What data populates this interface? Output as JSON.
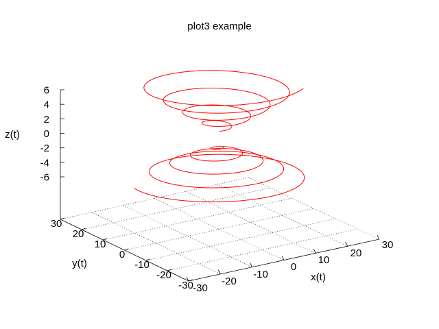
{
  "chart_data": {
    "type": "line",
    "title": "plot3 example",
    "xlabel": "x(t)",
    "ylabel": "y(t)",
    "zlabel": "z(t)",
    "xlim": [
      -30,
      30
    ],
    "ylim": [
      -30,
      30
    ],
    "zlim": [
      -7,
      7
    ],
    "xticks": [
      "-30",
      "-20",
      "-10",
      "0",
      "10",
      "20",
      "30"
    ],
    "yticks": [
      "-30",
      "-20",
      "-10",
      "0",
      "10",
      "20",
      "30"
    ],
    "zticks": [
      "-6",
      "-4",
      "-2",
      "0",
      "2",
      "4",
      "6"
    ],
    "grid": true,
    "view": "3d-perspective",
    "series": [
      {
        "color": "#ff0000",
        "parametric": "x = t*cos(t), y = t*sin(t), z = asinh-like spiral (upper half t>0, lower half t<0)",
        "t_range": [
          -28,
          28
        ],
        "z_range": [
          -7,
          6
        ]
      }
    ]
  }
}
